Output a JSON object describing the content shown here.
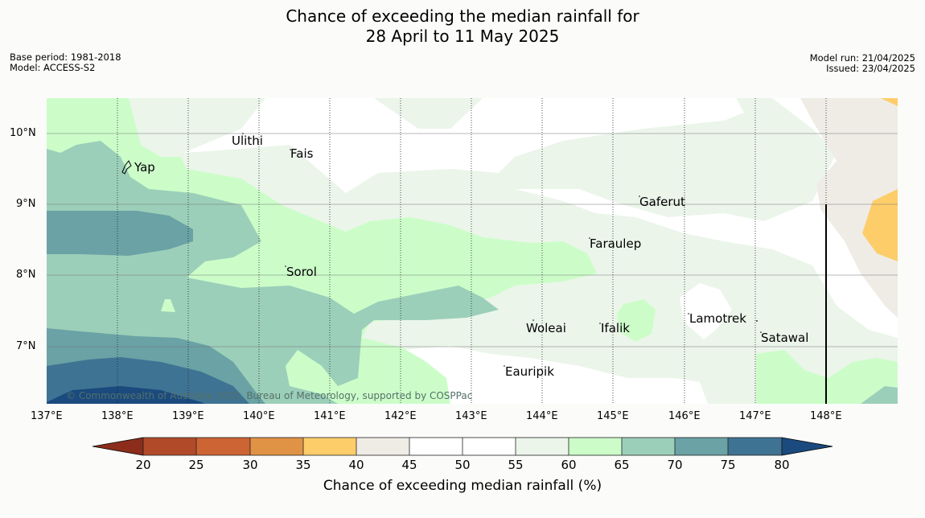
{
  "title": {
    "line1": "Chance of exceeding the median rainfall for",
    "line2": "28 April to 11 May 2025"
  },
  "meta_left": {
    "base_period": "Base period: 1981-2018",
    "model": "Model: ACCESS-S2"
  },
  "meta_right": {
    "model_run": "Model run: 21/04/2025",
    "issued": "Issued: 23/04/2025"
  },
  "axes": {
    "lat_labels": [
      "10°N",
      "9°N",
      "8°N",
      "7°N"
    ],
    "lon_labels": [
      "137°E",
      "138°E",
      "139°E",
      "140°E",
      "141°E",
      "142°E",
      "143°E",
      "144°E",
      "145°E",
      "146°E",
      "147°E",
      "148°E"
    ]
  },
  "places": [
    {
      "name": "Ulithi"
    },
    {
      "name": "Fais"
    },
    {
      "name": "Yap"
    },
    {
      "name": "Gaferut"
    },
    {
      "name": "Faraulep"
    },
    {
      "name": "Sorol"
    },
    {
      "name": "Lamotrek"
    },
    {
      "name": "Woleai"
    },
    {
      "name": "Ifalik"
    },
    {
      "name": "Satawal"
    },
    {
      "name": "Eauripik"
    }
  ],
  "copyright": "© Commonwealth of Australia 2025, Bureau of Meteorology, supported by COSPPac",
  "colorbar": {
    "label": "Chance of exceeding median rainfall (%)",
    "ticks": [
      "20",
      "25",
      "30",
      "35",
      "40",
      "45",
      "50",
      "55",
      "60",
      "65",
      "70",
      "75",
      "80"
    ],
    "colors": [
      "#8c2d1c",
      "#b04a28",
      "#cc6433",
      "#e09345",
      "#fdcd6a",
      "#efece6",
      "#ffffff",
      "#ffffff",
      "#ebf5ea",
      "#ccfdc9",
      "#9ccfb9",
      "#6aa2a5",
      "#3f7393",
      "#1a4a7e"
    ]
  }
}
